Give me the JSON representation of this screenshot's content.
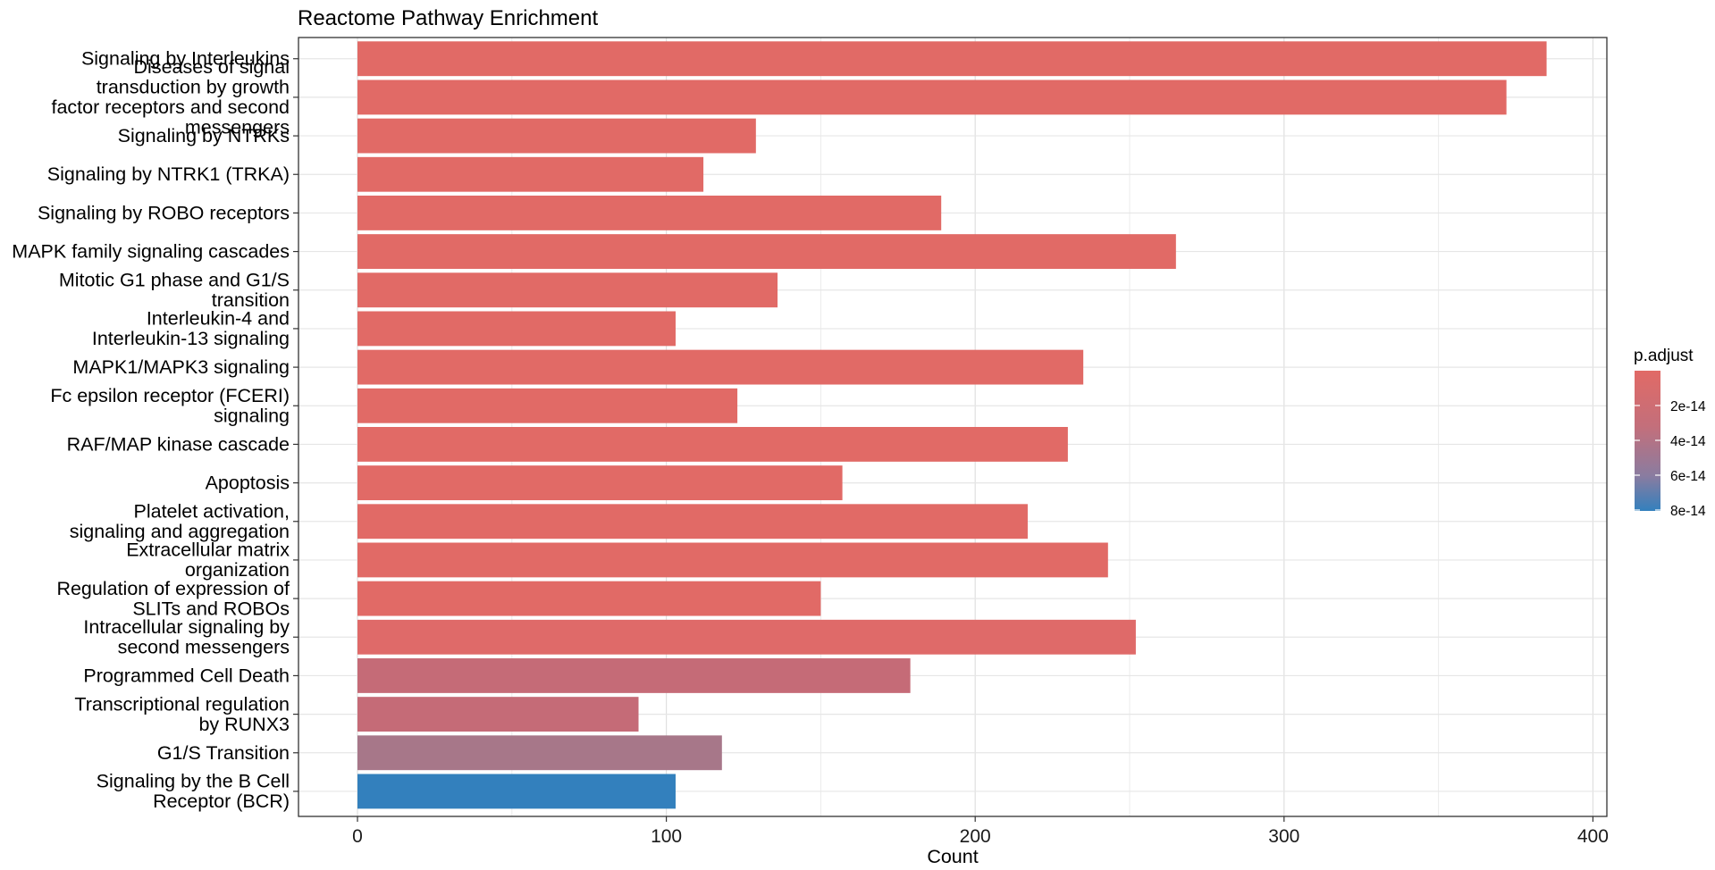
{
  "chart_data": {
    "type": "bar",
    "orientation": "horizontal",
    "title": "Reactome Pathway Enrichment",
    "xlabel": "Count",
    "ylabel": "",
    "xlim": [
      -19,
      403
    ],
    "x_ticks": [
      0,
      100,
      200,
      300,
      400
    ],
    "grid": true,
    "legend": {
      "title": "p.adjust",
      "position": "right",
      "tick_labels": [
        "2e-14",
        "4e-14",
        "6e-14",
        "8e-14"
      ],
      "low_color": "#E16A66",
      "high_color": "#3380BD"
    },
    "categories": [
      "Signaling by Interleukins",
      "Diseases of signal transduction by growth factor receptors and second messengers",
      "Signaling by NTRKs",
      "Signaling by NTRK1 (TRKA)",
      "Signaling by ROBO receptors",
      "MAPK family signaling cascades",
      "Mitotic G1 phase and G1/S transition",
      "Interleukin-4 and Interleukin-13 signaling",
      "MAPK1/MAPK3 signaling",
      "Fc epsilon receptor (FCERI) signaling",
      "RAF/MAP kinase cascade",
      "Apoptosis",
      "Platelet activation, signaling and aggregation",
      "Extracellular matrix organization",
      "Regulation of expression of SLITs and ROBOs",
      "Intracellular signaling by second messengers",
      "Programmed Cell Death",
      "Transcriptional regulation by RUNX3",
      "G1/S Transition",
      "Signaling by the B Cell Receptor (BCR)"
    ],
    "category_display_lines": [
      [
        "Signaling by Interleukins"
      ],
      [
        "Diseases of signal",
        "transduction by growth",
        "factor receptors and second",
        "messengers"
      ],
      [
        "Signaling by NTRKs"
      ],
      [
        "Signaling by NTRK1 (TRKA)"
      ],
      [
        "Signaling by ROBO receptors"
      ],
      [
        "MAPK family signaling cascades"
      ],
      [
        "Mitotic G1 phase and G1/S",
        "transition"
      ],
      [
        "Interleukin-4 and",
        "Interleukin-13 signaling"
      ],
      [
        "MAPK1/MAPK3 signaling"
      ],
      [
        "Fc epsilon receptor (FCERI)",
        "signaling"
      ],
      [
        "RAF/MAP kinase cascade"
      ],
      [
        "Apoptosis"
      ],
      [
        "Platelet activation,",
        "signaling and aggregation"
      ],
      [
        "Extracellular matrix",
        "organization"
      ],
      [
        "Regulation of expression of",
        "SLITs and ROBOs"
      ],
      [
        "Intracellular signaling by",
        "second messengers"
      ],
      [
        "Programmed Cell Death"
      ],
      [
        "Transcriptional regulation",
        "by RUNX3"
      ],
      [
        "G1/S Transition"
      ],
      [
        "Signaling by the B Cell",
        "Receptor (BCR)"
      ]
    ],
    "values": [
      385,
      372,
      129,
      112,
      189,
      265,
      136,
      103,
      235,
      123,
      230,
      157,
      217,
      243,
      150,
      252,
      179,
      91,
      118,
      103
    ],
    "bar_colors": [
      "#E16A66",
      "#E16A66",
      "#E16A66",
      "#E16A66",
      "#E16A66",
      "#E16A66",
      "#E16A66",
      "#E16A66",
      "#E16A66",
      "#E16A66",
      "#E16A66",
      "#E16A66",
      "#E16A66",
      "#E16A66",
      "#E16A66",
      "#DF6A69",
      "#C56B77",
      "#C56B77",
      "#A77789",
      "#3380BD"
    ]
  }
}
